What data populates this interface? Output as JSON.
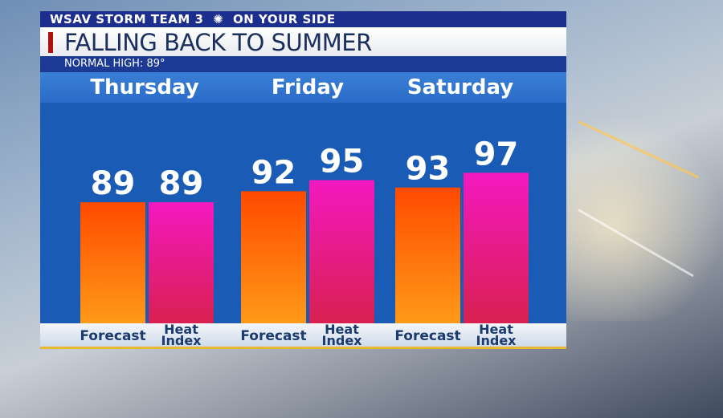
{
  "header": {
    "brand": "WSAV STORM TEAM 3",
    "network_icon": "peacock-icon",
    "tagline": "ON YOUR SIDE"
  },
  "title": "FALLING BACK TO SUMMER",
  "subtitle": "NORMAL HIGH:  89°",
  "colors": {
    "forecast": "#ff5a00",
    "heat_index": "#f018b0",
    "panel": "#1a5bb5"
  },
  "chart_data": {
    "type": "bar",
    "categories": [
      "Thursday",
      "Friday",
      "Saturday"
    ],
    "series": [
      {
        "name": "Forecast",
        "values": [
          89,
          92,
          93
        ]
      },
      {
        "name": "Heat Index",
        "values": [
          89,
          95,
          97
        ]
      }
    ],
    "series_labels": [
      [
        "Forecast"
      ],
      [
        "Heat",
        "Index"
      ]
    ],
    "grid": false
  }
}
